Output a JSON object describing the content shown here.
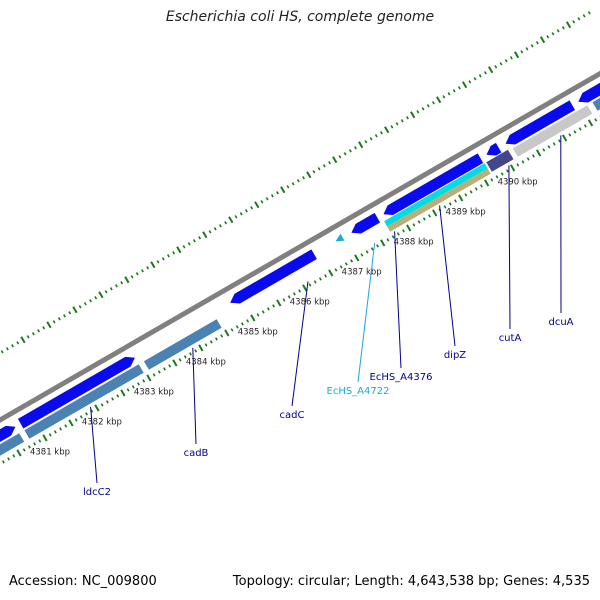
{
  "title": "Escherichia coli HS, complete genome",
  "footer": {
    "accession": "Accession: NC_009800",
    "summary": "Topology: circular; Length: 4,643,538 bp; Genes: 4,535"
  },
  "colors": {
    "backbone": "#808080",
    "tick_mark": "#1a7a1a",
    "gene_forward": "#0a0aee",
    "gene_reverse": "#4a82b4",
    "gene_selected": "#00dde0",
    "gene_olive": "#b8b078",
    "gene_dark": "#45458a",
    "gene_grey": "#c8c8c8",
    "pseudogene": "#18a8e0",
    "gene_label": "#00008b",
    "pseudogene_label": "#18a8e0"
  },
  "kbp_labels": [
    "4381 kbp",
    "4382 kbp",
    "4383 kbp",
    "4384 kbp",
    "4385 kbp",
    "4386 kbp",
    "4387 kbp",
    "4388 kbp",
    "4389 kbp",
    "4390 kbp"
  ],
  "genes": [
    {
      "name": "ldcC2",
      "color_key": "gene_label"
    },
    {
      "name": "cadB",
      "color_key": "gene_label"
    },
    {
      "name": "cadC",
      "color_key": "gene_label"
    },
    {
      "name": "EcHS_A4722",
      "color_key": "pseudogene_label"
    },
    {
      "name": "EcHS_A4376",
      "color_key": "gene_label"
    },
    {
      "name": "dipZ",
      "color_key": "gene_label"
    },
    {
      "name": "cutA",
      "color_key": "gene_label"
    },
    {
      "name": "dcuA",
      "color_key": "gene_label"
    }
  ]
}
